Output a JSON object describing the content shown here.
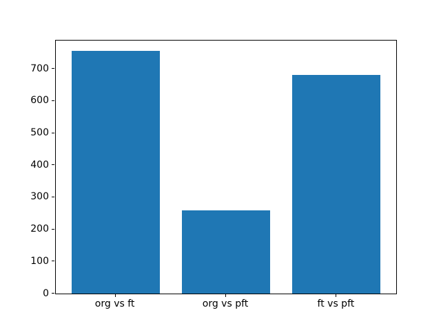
{
  "chart_data": {
    "type": "bar",
    "title": "",
    "xlabel": "",
    "ylabel": "",
    "categories": [
      "org vs ft",
      "org vs pft",
      "ft vs pft"
    ],
    "values": [
      757,
      259,
      681
    ],
    "bar_color": "#1f77b4",
    "frame_color": "#000000",
    "background_color": "#ffffff",
    "yticks": [
      0,
      100,
      200,
      300,
      400,
      500,
      600,
      700
    ],
    "ylim": [
      0,
      788
    ],
    "xlim": [
      -0.54,
      2.54
    ],
    "bar_width": 0.8,
    "grid": false,
    "legend": false
  }
}
